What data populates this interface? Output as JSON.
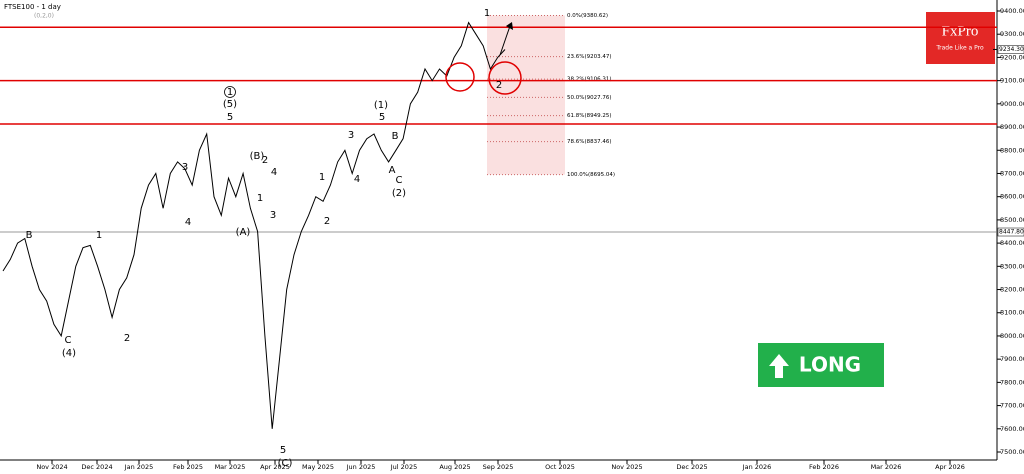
{
  "chart_data": {
    "type": "line",
    "title": "FTSE100 - 1 day",
    "subtitle": "(0,2,0)",
    "color": "#000000",
    "categories": [
      null,
      null,
      null,
      null,
      null,
      null,
      null,
      null,
      null,
      null,
      null,
      null,
      null,
      null,
      null,
      null,
      null,
      null,
      null,
      null,
      null,
      null,
      null,
      null,
      null,
      null,
      null,
      null,
      null,
      null,
      null,
      null,
      null,
      null,
      null,
      null,
      null,
      null,
      null,
      null,
      null,
      null,
      null,
      null,
      null,
      null,
      null,
      null,
      null,
      null,
      null,
      null,
      null,
      null,
      null,
      null,
      null,
      null,
      null,
      null,
      null,
      null,
      null,
      null,
      null,
      null,
      null,
      null,
      null,
      null
    ],
    "values": [
      8280,
      8330,
      8400,
      8420,
      8300,
      8200,
      8150,
      8050,
      8000,
      8150,
      8300,
      8380,
      8390,
      8300,
      8200,
      8080,
      8200,
      8250,
      8350,
      8550,
      8650,
      8700,
      8550,
      8700,
      8750,
      8720,
      8650,
      8800,
      8870,
      8600,
      8520,
      8680,
      8600,
      8700,
      8550,
      8450,
      8000,
      7600,
      7900,
      8200,
      8350,
      8450,
      8520,
      8600,
      8580,
      8650,
      8750,
      8800,
      8700,
      8800,
      8850,
      8870,
      8800,
      8750,
      8800,
      8850,
      9000,
      9050,
      9150,
      9100,
      9150,
      9120,
      9200,
      9250,
      9350,
      9300,
      9250,
      9150,
      9200,
      9234
    ],
    "ylim": [
      7500,
      9400
    ],
    "yticks": [
      {
        "value": 9400,
        "label": "9400.00"
      },
      {
        "value": 9300,
        "label": "9300.00"
      },
      {
        "value": 9200,
        "label": "9200.00"
      },
      {
        "value": 9100,
        "label": "9100.00"
      },
      {
        "value": 9000,
        "label": "9000.00"
      },
      {
        "value": 8900,
        "label": "8900.00"
      },
      {
        "value": 8800,
        "label": "8800.00"
      },
      {
        "value": 8700,
        "label": "8700.00"
      },
      {
        "value": 8600,
        "label": "8600.00"
      },
      {
        "value": 8500,
        "label": "8500.00"
      },
      {
        "value": 8400,
        "label": "8400.00"
      },
      {
        "value": 8300,
        "label": "8300.00"
      },
      {
        "value": 8200,
        "label": "8200.00"
      },
      {
        "value": 8100,
        "label": "8100.00"
      },
      {
        "value": 8000,
        "label": "8000.00"
      },
      {
        "value": 7900,
        "label": "7900.00"
      },
      {
        "value": 7800,
        "label": "7800.00"
      },
      {
        "value": 7700,
        "label": "7700.00"
      },
      {
        "value": 7600,
        "label": "7600.00"
      },
      {
        "value": 7500,
        "label": "7500.00"
      }
    ],
    "xaxis_labels": [
      "Nov 2024",
      "Dec 2024",
      "Jan 2025",
      "Feb 2025",
      "Mar 2025",
      "Apr 2025",
      "May 2025",
      "Jun 2025",
      "Jul 2025",
      "Aug 2025",
      "Sep 2025",
      "Oct 2025",
      "Nov 2025",
      "Dec 2025",
      "Jan 2026",
      "Feb 2026",
      "Mar 2026",
      "Apr 2026"
    ],
    "levels": [
      {
        "value": 9330,
        "color": "#e00000"
      },
      {
        "value": 9100,
        "color": "#e00000"
      },
      {
        "value": 8913,
        "color": "#e00000"
      }
    ],
    "marker_lines": [
      {
        "value": 8447.8,
        "label": "8447.80"
      },
      {
        "value": 9234.3,
        "label": "9234.30"
      }
    ],
    "fib_levels": [
      {
        "value": 9380.62,
        "label": "0.0%(9380.62)"
      },
      {
        "value": 9203.47,
        "label": "23.6%(9203.47)"
      },
      {
        "value": 9106.31,
        "label": "38.2%(9106.31)"
      },
      {
        "value": 9027.76,
        "label": "50.0%(9027.76)"
      },
      {
        "value": 8949.25,
        "label": "61.8%(8949.25)"
      },
      {
        "value": 8837.46,
        "label": "78.6%(8837.46)"
      },
      {
        "value": 8695.04,
        "label": "100.0%(8695.04)"
      }
    ],
    "annotations": [
      "1",
      "(5)",
      "5",
      "3",
      "4",
      "(B)",
      "2",
      "4",
      "1",
      "3",
      "(A)",
      "5",
      "(C)",
      "1",
      "2",
      "3",
      "4",
      "(1)",
      "5",
      "B",
      "A",
      "C",
      "(2)",
      "B",
      "1",
      "C",
      "(4)",
      "2",
      "1",
      "2"
    ],
    "signal": "LONG",
    "brand": "FxPro",
    "brand_tagline": "Trade Like a Pro"
  }
}
